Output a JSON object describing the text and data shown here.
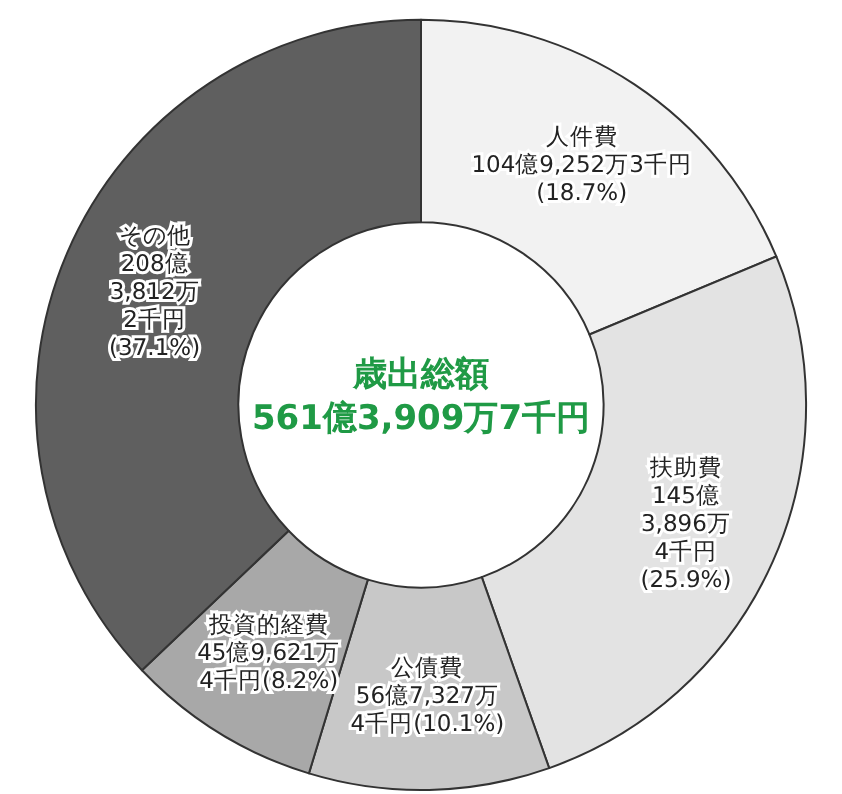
{
  "chart_data": {
    "type": "donut",
    "title": "歳出総額\n561億3,909万7千円",
    "categories": [
      "人件費",
      "扶助費",
      "公債費",
      "投資的経費",
      "その他"
    ],
    "values": [
      18.7,
      25.9,
      10.1,
      8.2,
      37.1
    ],
    "value_labels": [
      "104億9,252万3千円\n(18.7%)",
      "145億\n3,896万\n4千円\n(25.9%)",
      "56億7,327万\n4千円(10.1%)",
      "45億9,621万\n4千円(8.2%)",
      "208億\n3,812万\n2千円\n(37.1%)"
    ],
    "colors": [
      "#f2f2f2",
      "#e3e3e3",
      "#c8c8c8",
      "#a8a8a8",
      "#5f5f5f"
    ],
    "legend": false
  }
}
